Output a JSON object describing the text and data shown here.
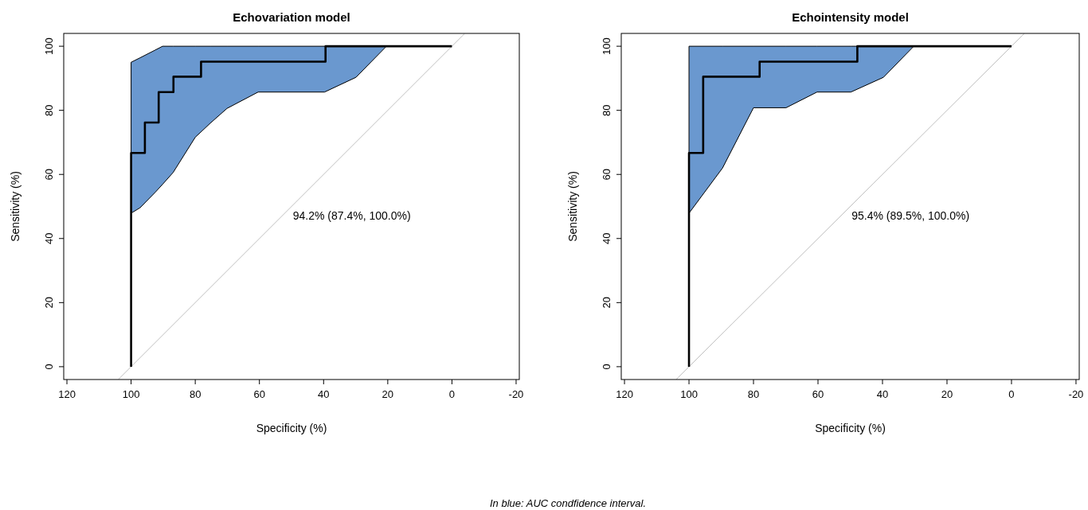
{
  "chart_data": [
    {
      "type": "line",
      "title": "Echovariation model",
      "xlabel": "Specificity (%)",
      "ylabel": "Sensitivity (%)",
      "xlim": [
        121,
        -21
      ],
      "ylim": [
        -4,
        104
      ],
      "xticks": [
        120,
        100,
        80,
        60,
        40,
        20,
        0,
        -20
      ],
      "yticks": [
        0,
        20,
        40,
        60,
        80,
        100
      ],
      "annotations": [
        "94.2% (87.4%, 100.0%)"
      ],
      "series": [
        {
          "type": "area",
          "color": "#6a98cf",
          "x": [
            100,
            97.2,
            92.5,
            90.2,
            86.9,
            80,
            75.3,
            70.1,
            60.4,
            39.7,
            29.9,
            20.4
          ],
          "values": [
            null,
            null,
            null,
            null,
            null,
            null,
            null,
            null,
            null,
            null,
            null,
            null
          ],
          "upper": [
            95,
            96.4,
            98.8,
            100,
            100,
            100,
            100,
            100,
            100,
            100,
            100,
            100
          ],
          "lower": [
            47.9,
            49.6,
            54.4,
            56.9,
            60.6,
            71.6,
            76,
            80.6,
            85.7,
            85.7,
            90.3,
            100
          ]
        },
        {
          "type": "line",
          "color": "#bebebe",
          "x": [
            104,
            -4
          ],
          "values": [
            -4,
            104
          ]
        },
        {
          "type": "line",
          "color": "#000000",
          "x": [
            100,
            100,
            95.7,
            95.7,
            91.4,
            91.4,
            86.8,
            86.8,
            78.2,
            78.2,
            39.4,
            39.4,
            0
          ],
          "values": [
            0,
            66.7,
            66.7,
            76.2,
            76.2,
            85.7,
            85.7,
            90.5,
            90.5,
            95.2,
            95.2,
            100,
            100
          ]
        }
      ]
    },
    {
      "type": "line",
      "title": "Echointensity model",
      "xlabel": "Specificity (%)",
      "ylabel": "Sensitivity (%)",
      "xlim": [
        121,
        -21
      ],
      "ylim": [
        -4,
        104
      ],
      "xticks": [
        120,
        100,
        80,
        60,
        40,
        20,
        0,
        -20
      ],
      "yticks": [
        0,
        20,
        40,
        60,
        80,
        100
      ],
      "annotations": [
        "95.4% (89.5%, 100.0%)"
      ],
      "series": [
        {
          "type": "area",
          "color": "#6a98cf",
          "x": [
            100,
            89.6,
            80,
            69.9,
            60.3,
            49.8,
            39.7,
            30.3
          ],
          "values": [
            null,
            null,
            null,
            null,
            null,
            null,
            null,
            null
          ],
          "upper": [
            100,
            100,
            100,
            100,
            100,
            100,
            100,
            100
          ],
          "lower": [
            47.9,
            62,
            80.8,
            80.8,
            85.7,
            85.7,
            90.3,
            100
          ]
        },
        {
          "type": "line",
          "color": "#bebebe",
          "x": [
            104,
            -4
          ],
          "values": [
            -4,
            104
          ]
        },
        {
          "type": "line",
          "color": "#000000",
          "x": [
            100,
            100,
            95.6,
            95.6,
            78.1,
            78.1,
            47.8,
            47.8,
            0
          ],
          "values": [
            0,
            66.7,
            66.7,
            90.5,
            90.5,
            95.2,
            95.2,
            100,
            100
          ]
        }
      ]
    },
    {
      "type": "other",
      "annotations": [
        "In blue: AUC condfidence interval."
      ]
    }
  ]
}
